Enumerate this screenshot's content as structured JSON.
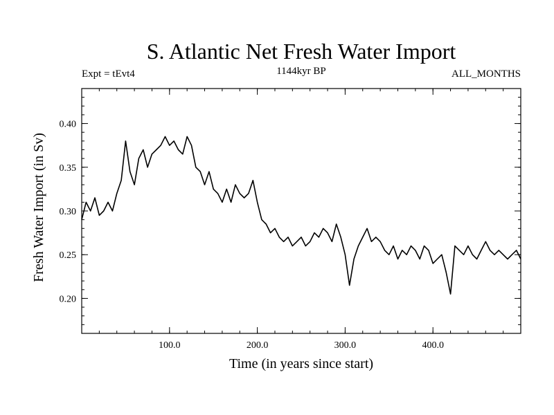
{
  "chart_data": {
    "type": "line",
    "title": "S. Atlantic Net Fresh Water Import",
    "subtitle_left": "Expt = tEvt4",
    "subtitle_center": "1144kyr BP",
    "subtitle_right": "ALL_MONTHS",
    "xlabel": "Time (in years since start)",
    "ylabel": "Fresh Water Import (in Sv)",
    "xlim": [
      0,
      500
    ],
    "ylim": [
      0.16,
      0.44
    ],
    "x_major_ticks": [
      100,
      200,
      300,
      400
    ],
    "x_tick_labels": [
      "100.0",
      "200.0",
      "300.0",
      "400.0"
    ],
    "x_minor_step": 20,
    "y_major_ticks": [
      0.2,
      0.25,
      0.3,
      0.35,
      0.4
    ],
    "y_tick_labels": [
      "0.20",
      "0.25",
      "0.30",
      "0.35",
      "0.40"
    ],
    "y_minor_step": 0.01,
    "series": [
      {
        "name": "S. Atlantic Net Fresh Water Import",
        "x": [
          0,
          5,
          10,
          15,
          20,
          25,
          30,
          35,
          40,
          45,
          50,
          55,
          60,
          65,
          70,
          75,
          80,
          85,
          90,
          95,
          100,
          105,
          110,
          115,
          120,
          125,
          130,
          135,
          140,
          145,
          150,
          155,
          160,
          165,
          170,
          175,
          180,
          185,
          190,
          195,
          200,
          205,
          210,
          215,
          220,
          225,
          230,
          235,
          240,
          245,
          250,
          255,
          260,
          265,
          270,
          275,
          280,
          285,
          290,
          295,
          300,
          305,
          310,
          315,
          320,
          325,
          330,
          335,
          340,
          345,
          350,
          355,
          360,
          365,
          370,
          375,
          380,
          385,
          390,
          395,
          400,
          405,
          410,
          415,
          420,
          425,
          430,
          435,
          440,
          445,
          450,
          455,
          460,
          465,
          470,
          475,
          480,
          485,
          490,
          495,
          500
        ],
        "values": [
          0.29,
          0.31,
          0.3,
          0.315,
          0.295,
          0.3,
          0.31,
          0.3,
          0.32,
          0.335,
          0.38,
          0.345,
          0.33,
          0.36,
          0.37,
          0.35,
          0.365,
          0.37,
          0.375,
          0.385,
          0.375,
          0.38,
          0.37,
          0.365,
          0.385,
          0.375,
          0.35,
          0.345,
          0.33,
          0.345,
          0.325,
          0.32,
          0.31,
          0.325,
          0.31,
          0.33,
          0.32,
          0.315,
          0.32,
          0.335,
          0.31,
          0.29,
          0.285,
          0.275,
          0.28,
          0.27,
          0.265,
          0.27,
          0.26,
          0.265,
          0.27,
          0.26,
          0.265,
          0.275,
          0.27,
          0.28,
          0.275,
          0.265,
          0.285,
          0.27,
          0.25,
          0.215,
          0.245,
          0.26,
          0.27,
          0.28,
          0.265,
          0.27,
          0.265,
          0.255,
          0.25,
          0.26,
          0.245,
          0.255,
          0.25,
          0.26,
          0.255,
          0.245,
          0.26,
          0.255,
          0.24,
          0.245,
          0.25,
          0.23,
          0.205,
          0.26,
          0.255,
          0.25,
          0.26,
          0.25,
          0.245,
          0.255,
          0.265,
          0.255,
          0.25,
          0.255,
          0.25,
          0.245,
          0.25,
          0.255,
          0.245
        ]
      }
    ]
  }
}
